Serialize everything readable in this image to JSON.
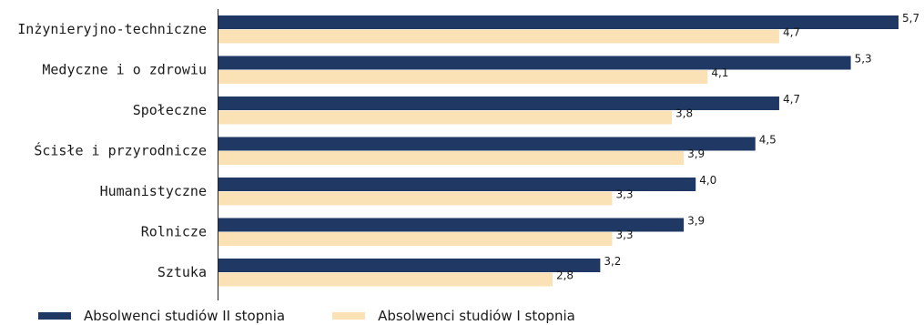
{
  "chart_data": {
    "type": "bar",
    "orientation": "horizontal",
    "categories": [
      "Inżynieryjno-techniczne",
      "Medyczne i o zdrowiu",
      "Społeczne",
      "Ścisłe i przyrodnicze",
      "Humanistyczne",
      "Rolnicze",
      "Sztuka"
    ],
    "series": [
      {
        "name": "Absolwenci studiów II stopnia",
        "color": "#1f3864",
        "values": [
          5.7,
          5.3,
          4.7,
          4.5,
          4.0,
          3.9,
          3.2
        ],
        "labels": [
          "5,7",
          "5,3",
          "4,7",
          "4,5",
          "4,0",
          "3,9",
          "3,2"
        ]
      },
      {
        "name": "Absolwenci studiów I stopnia",
        "color": "#fbe1b6",
        "values": [
          4.7,
          4.1,
          3.8,
          3.9,
          3.3,
          3.3,
          2.8
        ],
        "labels": [
          "4,7",
          "4,1",
          "3,8",
          "3,9",
          "3,3",
          "3,3",
          "2,8"
        ]
      }
    ],
    "xlim": [
      0,
      5.7
    ],
    "grid": false,
    "legend_position": "bottom-left"
  }
}
